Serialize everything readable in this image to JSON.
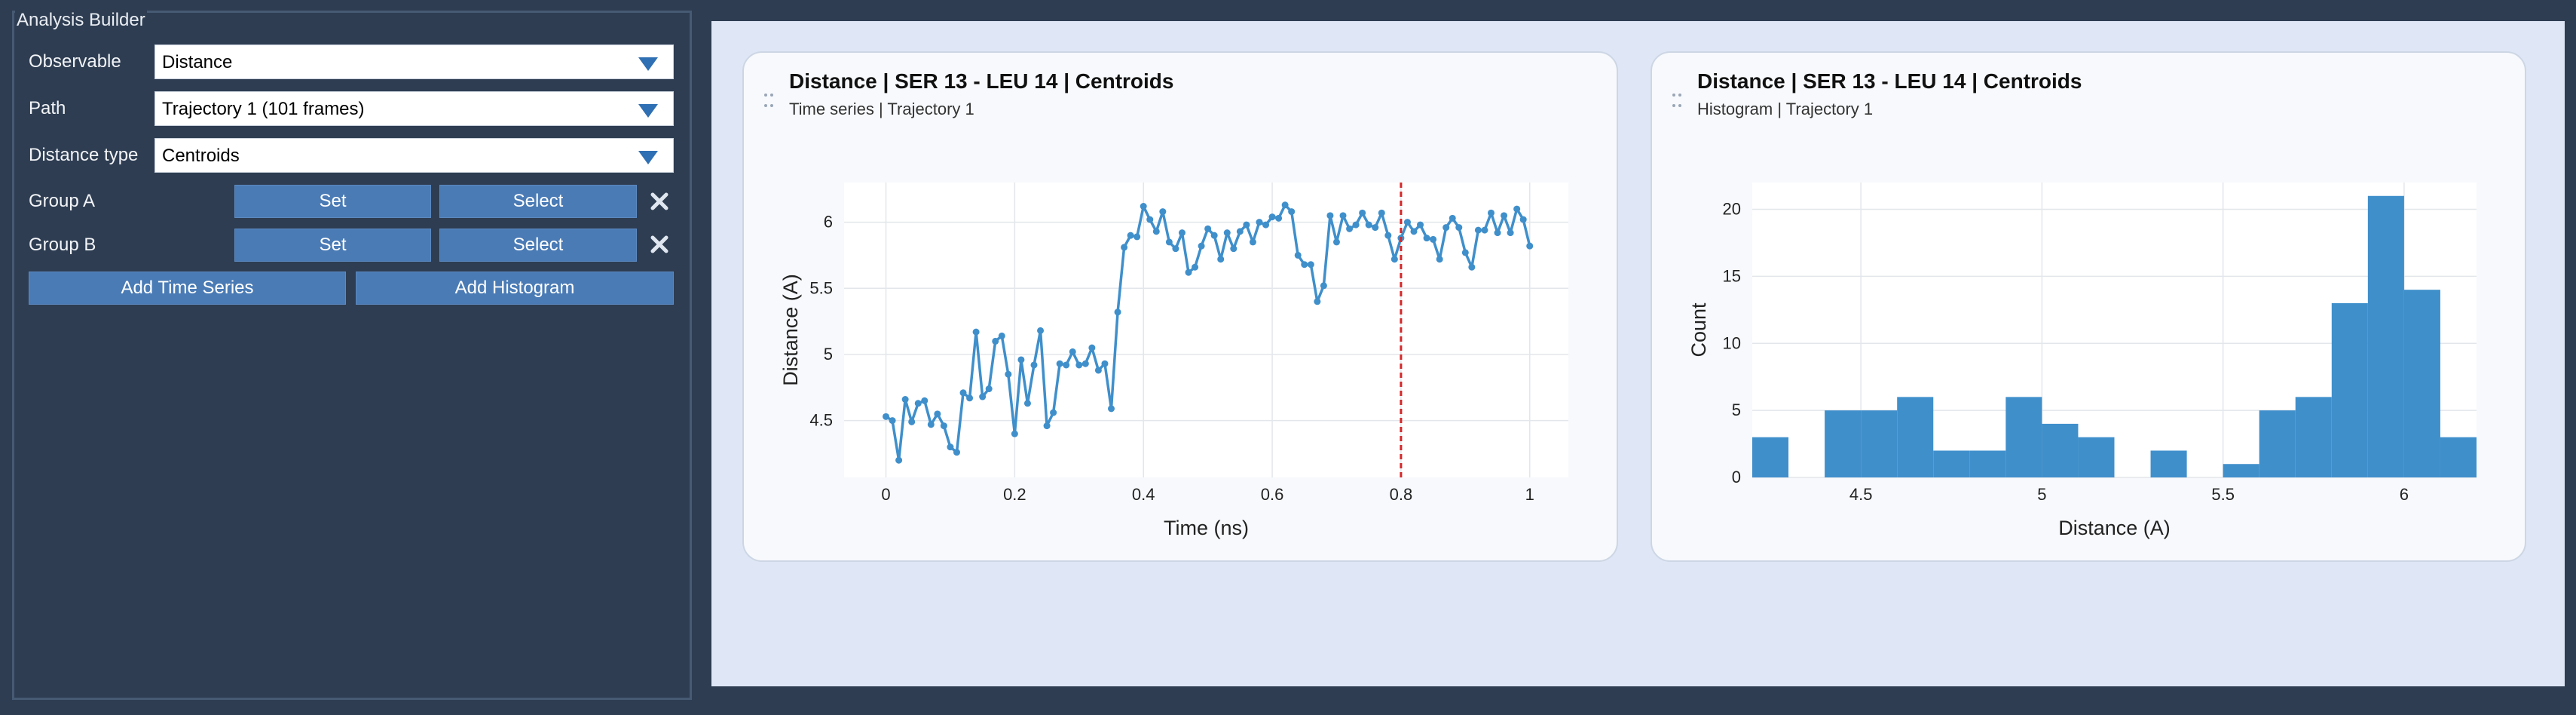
{
  "builder": {
    "title": "Analysis Builder",
    "observable": {
      "label": "Observable",
      "value": "Distance"
    },
    "path": {
      "label": "Path",
      "value": "Trajectory 1 (101 frames)"
    },
    "distance_type": {
      "label": "Distance type",
      "value": "Centroids"
    },
    "group_a": {
      "label": "Group A",
      "set": "Set",
      "select": "Select"
    },
    "group_b": {
      "label": "Group B",
      "set": "Set",
      "select": "Select"
    },
    "add_time_series": "Add Time Series",
    "add_histogram": "Add Histogram"
  },
  "cards": {
    "time_series": {
      "title": "Distance | SER 13 - LEU 14 | Centroids",
      "subtitle": "Time series | Trajectory 1"
    },
    "histogram": {
      "title": "Distance | SER 13 - LEU 14 | Centroids",
      "subtitle": "Histogram | Trajectory 1"
    }
  },
  "colors": {
    "series": "#3f8fcb",
    "marker_line": "#d62728",
    "grid": "#e3e6ea"
  },
  "chart_data": [
    {
      "type": "line",
      "title": "Distance | SER 13 - LEU 14 | Centroids",
      "xlabel": "Time (ns)",
      "ylabel": "Distance (A)",
      "xlim": [
        -0.065,
        1.06
      ],
      "ylim": [
        4.07,
        6.3
      ],
      "xticks": [
        "0",
        "0.2",
        "0.4",
        "0.6",
        "0.8",
        "1"
      ],
      "xtick_values": [
        0,
        0.2,
        0.4,
        0.6,
        0.8,
        1
      ],
      "yticks": [
        "4.5",
        "5",
        "5.5",
        "6"
      ],
      "ytick_values": [
        4.5,
        5,
        5.5,
        6
      ],
      "marker_x": 0.8,
      "x_start": 0,
      "x_step": 0.01,
      "values": [
        4.53,
        4.5,
        4.2,
        4.66,
        4.49,
        4.63,
        4.65,
        4.47,
        4.55,
        4.46,
        4.3,
        4.26,
        4.71,
        4.67,
        5.17,
        4.68,
        4.74,
        5.1,
        5.14,
        4.85,
        4.4,
        4.96,
        4.63,
        4.92,
        5.18,
        4.46,
        4.56,
        4.93,
        4.92,
        5.02,
        4.92,
        4.93,
        5.05,
        4.88,
        4.93,
        4.59,
        5.32,
        5.81,
        5.9,
        5.89,
        6.12,
        6.02,
        5.93,
        6.08,
        5.85,
        5.8,
        5.92,
        5.62,
        5.66,
        5.82,
        5.95,
        5.9,
        5.72,
        5.92,
        5.8,
        5.93,
        5.98,
        5.85,
        6.0,
        5.98,
        6.04,
        6.03,
        6.13,
        6.08,
        5.75,
        5.68,
        5.68,
        5.4,
        5.52,
        6.05,
        5.85,
        6.05,
        5.95,
        5.98,
        6.07,
        5.98,
        5.96,
        6.07,
        5.9,
        5.72,
        5.88,
        6.0,
        5.93,
        5.98,
        5.88,
        5.87,
        5.72,
        5.96,
        6.03,
        5.96,
        5.77,
        5.66,
        5.94,
        5.94,
        6.07,
        5.92,
        6.05,
        5.92,
        6.1,
        6.02,
        5.82
      ]
    },
    {
      "type": "bar",
      "title": "Distance | SER 13 - LEU 14 | Centroids",
      "xlabel": "Distance (A)",
      "ylabel": "Count",
      "xlim": [
        4.2,
        6.2
      ],
      "ylim": [
        0,
        22
      ],
      "xticks": [
        "4.5",
        "5",
        "5.5",
        "6"
      ],
      "xtick_values": [
        4.5,
        5,
        5.5,
        6
      ],
      "yticks": [
        "0",
        "5",
        "10",
        "15",
        "20"
      ],
      "ytick_values": [
        0,
        5,
        10,
        15,
        20
      ],
      "bin_start": 4.2,
      "bin_width": 0.1,
      "values": [
        3,
        0,
        5,
        5,
        6,
        2,
        2,
        6,
        4,
        3,
        0,
        2,
        0,
        1,
        5,
        6,
        13,
        21,
        14,
        3
      ]
    }
  ]
}
